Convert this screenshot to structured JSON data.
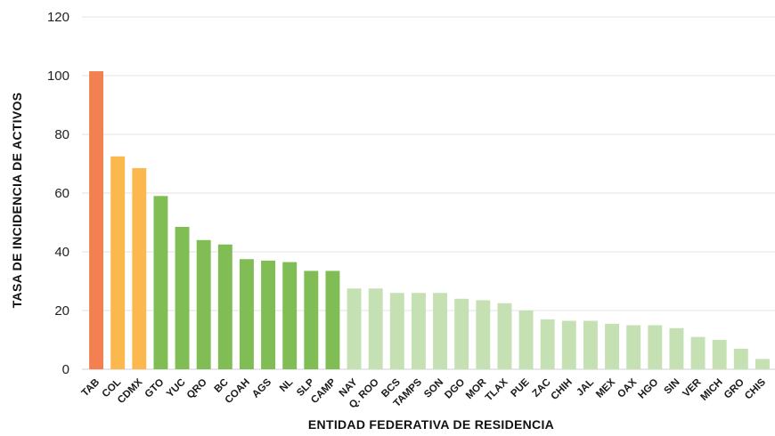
{
  "chart_data": {
    "type": "bar",
    "title": "",
    "xlabel": "ENTIDAD FEDERATIVA DE RESIDENCIA",
    "ylabel": "TASA DE INCIDENCIA DE ACTIVOS",
    "ylim": [
      0,
      120
    ],
    "yticks": [
      0,
      20,
      40,
      60,
      80,
      100,
      120
    ],
    "grid": true,
    "categories": [
      "TAB",
      "COL",
      "CDMX",
      "GTO",
      "YUC",
      "QRO",
      "BC",
      "COAH",
      "AGS",
      "NL",
      "SLP",
      "CAMP",
      "NAY",
      "Q. ROO",
      "BCS",
      "TAMPS",
      "SON",
      "DGO",
      "MOR",
      "TLAX",
      "PUE",
      "ZAC",
      "CHIH",
      "JAL",
      "MEX",
      "OAX",
      "HGO",
      "SIN",
      "VER",
      "MICH",
      "GRO",
      "CHIS"
    ],
    "values": [
      101.5,
      72.5,
      68.5,
      59,
      48.5,
      44,
      42.5,
      37.5,
      37,
      36.5,
      33.5,
      33.5,
      27.5,
      27.5,
      26,
      26,
      26,
      24,
      23.5,
      22.5,
      20,
      17,
      16.5,
      16.5,
      15.5,
      15,
      15,
      14,
      11,
      10,
      7,
      3.5
    ],
    "bar_colors": [
      "#f28050",
      "#fbb84e",
      "#fbb84e",
      "#80bd54",
      "#80bd54",
      "#80bd54",
      "#80bd54",
      "#80bd54",
      "#80bd54",
      "#80bd54",
      "#80bd54",
      "#80bd54",
      "#c5e0b3",
      "#c5e0b3",
      "#c5e0b3",
      "#c5e0b3",
      "#c5e0b3",
      "#c5e0b3",
      "#c5e0b3",
      "#c5e0b3",
      "#c5e0b3",
      "#c5e0b3",
      "#c5e0b3",
      "#c5e0b3",
      "#c5e0b3",
      "#c5e0b3",
      "#c5e0b3",
      "#c5e0b3",
      "#c5e0b3",
      "#c5e0b3",
      "#c5e0b3",
      "#c5e0b3"
    ]
  }
}
